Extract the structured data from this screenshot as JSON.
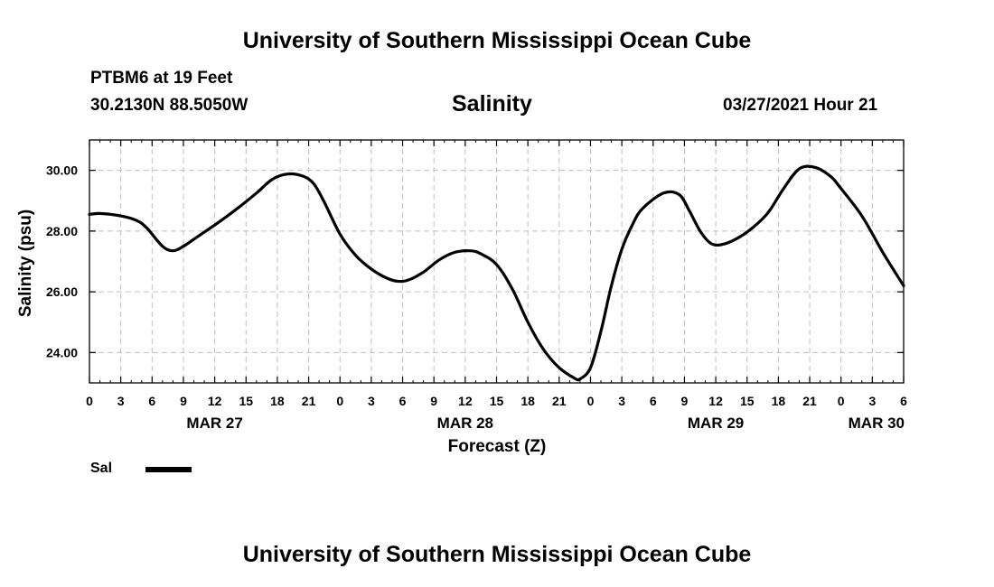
{
  "header": {
    "title": "University of Southern Mississippi Ocean Cube",
    "station": "PTBM6 at 19 Feet",
    "coords": "30.2130N  88.5050W",
    "subtitle": "Salinity",
    "datetime": "03/27/2021 Hour 21"
  },
  "footer": {
    "title": "University of Southern Mississippi Ocean Cube"
  },
  "legend": {
    "label": "Sal"
  },
  "colors": {
    "line": "#000000",
    "grid": "#c0c0c0",
    "frame": "#000000"
  },
  "chart_data": {
    "type": "line",
    "title": "Salinity",
    "xlabel": "Forecast (Z)",
    "ylabel": "Salinity (psu)",
    "xlim": [
      0,
      78
    ],
    "ylim": [
      23,
      31
    ],
    "yticks": [
      24,
      26,
      28,
      30
    ],
    "ytick_labels": [
      "24.00",
      "26.00",
      "28.00",
      "30.00"
    ],
    "xticks": [
      0,
      3,
      6,
      9,
      12,
      15,
      18,
      21,
      24,
      27,
      30,
      33,
      36,
      39,
      42,
      45,
      48,
      51,
      54,
      57,
      60,
      63,
      66,
      69,
      72,
      75,
      78
    ],
    "xtick_labels": [
      "0",
      "3",
      "6",
      "9",
      "12",
      "15",
      "18",
      "21",
      "0",
      "3",
      "6",
      "9",
      "12",
      "15",
      "18",
      "21",
      "0",
      "3",
      "6",
      "9",
      "12",
      "15",
      "18",
      "21",
      "0",
      "3",
      "6"
    ],
    "date_labels": [
      {
        "x": 12,
        "label": "MAR 27"
      },
      {
        "x": 36,
        "label": "MAR 28"
      },
      {
        "x": 60,
        "label": "MAR 29"
      },
      {
        "x": 78,
        "label": "MAR 30"
      }
    ],
    "grid": true,
    "series": [
      {
        "name": "Sal",
        "x": [
          0,
          1,
          3,
          4.5,
          5.5,
          7,
          8,
          9,
          10.5,
          12,
          14,
          16,
          17.5,
          19,
          20.5,
          21.5,
          22.5,
          24,
          25.5,
          27,
          28.5,
          29.5,
          30.5,
          32,
          33.5,
          35,
          36.5,
          37.5,
          39,
          40.5,
          42,
          43.5,
          45,
          46.5,
          47,
          48,
          49,
          50,
          51,
          52,
          53,
          55,
          56.5,
          57.5,
          58.5,
          59.5,
          60.5,
          62,
          63.5,
          65,
          66.5,
          68,
          69.5,
          71,
          72,
          74,
          76,
          78
        ],
        "values": [
          28.55,
          28.58,
          28.5,
          28.35,
          28.1,
          27.5,
          27.35,
          27.5,
          27.85,
          28.2,
          28.7,
          29.25,
          29.7,
          29.88,
          29.8,
          29.55,
          28.95,
          27.9,
          27.2,
          26.75,
          26.45,
          26.35,
          26.38,
          26.65,
          27.05,
          27.3,
          27.35,
          27.25,
          26.9,
          26.1,
          25.0,
          24.1,
          23.5,
          23.15,
          23.13,
          23.5,
          24.7,
          26.2,
          27.4,
          28.2,
          28.75,
          29.25,
          29.2,
          28.65,
          28.0,
          27.6,
          27.55,
          27.75,
          28.1,
          28.6,
          29.4,
          30.05,
          30.1,
          29.8,
          29.4,
          28.5,
          27.3,
          26.2
        ]
      }
    ]
  }
}
